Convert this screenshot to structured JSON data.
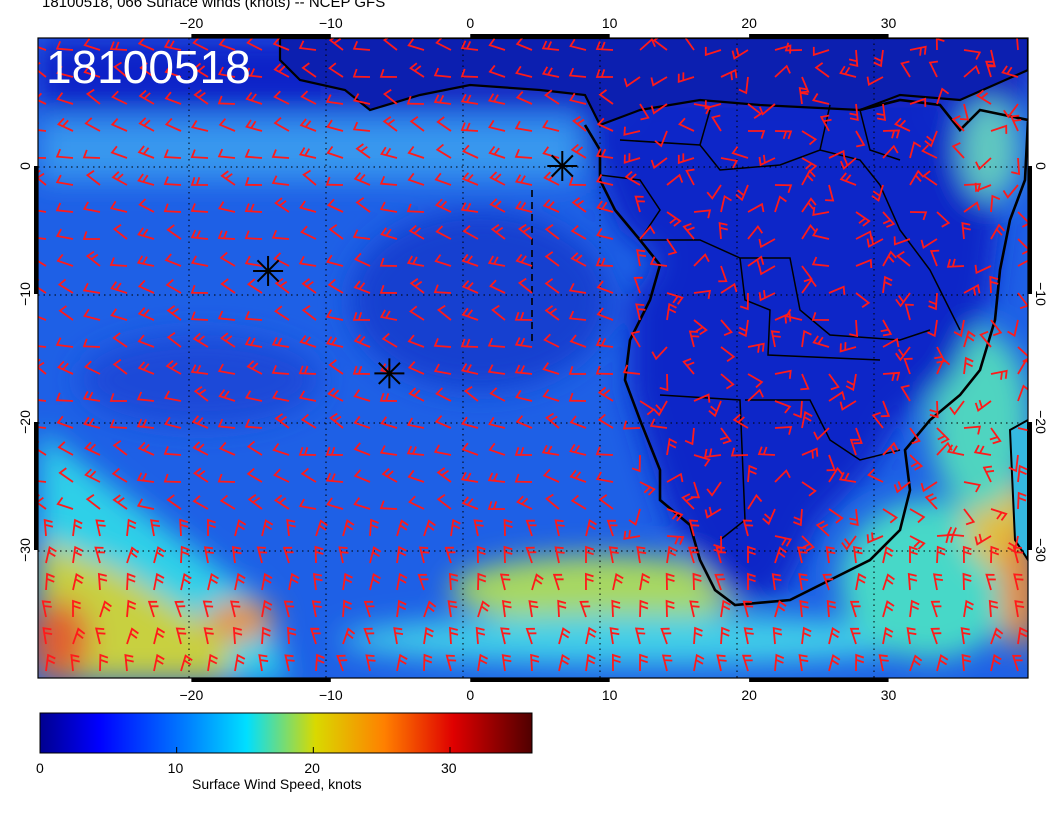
{
  "header": {
    "title": "18100518, 066 Surface winds (knots) -- NCEP GFS"
  },
  "stamp": "18100518",
  "map": {
    "lon_range": [
      -31,
      40
    ],
    "lat_range": [
      -40,
      10
    ],
    "lon_ticks": [
      -20,
      -10,
      0,
      10,
      20,
      30
    ],
    "lon_tick_labels": [
      "−20",
      "−10",
      "0",
      "10",
      "20",
      "30"
    ],
    "lat_ticks": [
      0,
      -10,
      -20,
      -30
    ],
    "lat_tick_labels": [
      "0",
      "−10",
      "−20",
      "−30"
    ],
    "grid": "dotted black lines every 10 degrees",
    "barb_color": "#ff1a1a",
    "storm_markers": [
      {
        "lon": -14.5,
        "lat": -8.2
      },
      {
        "lon": -5.8,
        "lat": -16.2
      },
      {
        "lon": 6.6,
        "lat": 0.0
      }
    ]
  },
  "colorbar": {
    "title": "Surface Wind Speed, knots",
    "ticks": [
      0,
      10,
      20,
      30
    ],
    "tick_labels": [
      "0",
      "10",
      "20",
      "30"
    ],
    "range": [
      0,
      36
    ],
    "colors": [
      "#00008f",
      "#0000ff",
      "#0080ff",
      "#00dfff",
      "#d9d900",
      "#ff8000",
      "#df0000",
      "#500000"
    ]
  }
}
